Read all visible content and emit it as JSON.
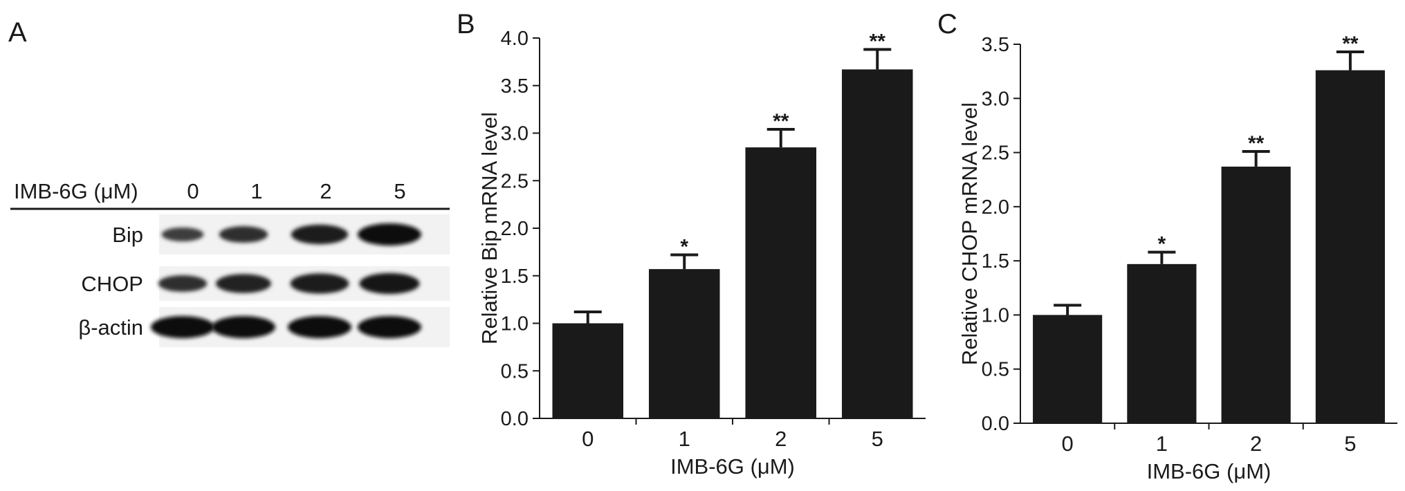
{
  "panels": {
    "A": {
      "letter": "A",
      "treatment_label": "IMB-6G (μM)",
      "doses": [
        "0",
        "1",
        "2",
        "5"
      ],
      "rows": [
        {
          "label": "Bip",
          "intensities": [
            0.35,
            0.55,
            0.8,
            1.0
          ]
        },
        {
          "label": "CHOP",
          "intensities": [
            0.55,
            0.75,
            0.85,
            0.9
          ]
        },
        {
          "label": "β-actin",
          "intensities": [
            1.0,
            1.0,
            1.0,
            1.0
          ]
        }
      ]
    },
    "B": {
      "letter": "B"
    },
    "C": {
      "letter": "C"
    }
  },
  "chart_data": [
    {
      "type": "bar",
      "panel": "B",
      "categories": [
        "0",
        "1",
        "2",
        "5"
      ],
      "values": [
        1.0,
        1.57,
        2.85,
        3.67
      ],
      "errors": [
        0.12,
        0.15,
        0.19,
        0.21
      ],
      "significance": [
        "",
        "*",
        "**",
        "**"
      ],
      "xlabel": "IMB-6G (μM)",
      "ylabel": "Relative Bip mRNA level",
      "ylim": [
        0,
        4.0
      ],
      "yticks": [
        "0.0",
        "0.5",
        "1.0",
        "1.5",
        "2.0",
        "2.5",
        "3.0",
        "3.5",
        "4.0"
      ],
      "bar_color": "#1a1a1a",
      "grid": false
    },
    {
      "type": "bar",
      "panel": "C",
      "categories": [
        "0",
        "1",
        "2",
        "5"
      ],
      "values": [
        1.0,
        1.47,
        2.37,
        3.26
      ],
      "errors": [
        0.09,
        0.11,
        0.14,
        0.17
      ],
      "significance": [
        "",
        "*",
        "**",
        "**"
      ],
      "xlabel": "IMB-6G (μM)",
      "ylabel": "Relative CHOP mRNA level",
      "ylim": [
        0,
        3.5
      ],
      "yticks": [
        "0.0",
        "0.5",
        "1.0",
        "1.5",
        "2.0",
        "2.5",
        "3.0",
        "3.5"
      ],
      "bar_color": "#1a1a1a",
      "grid": false
    }
  ]
}
